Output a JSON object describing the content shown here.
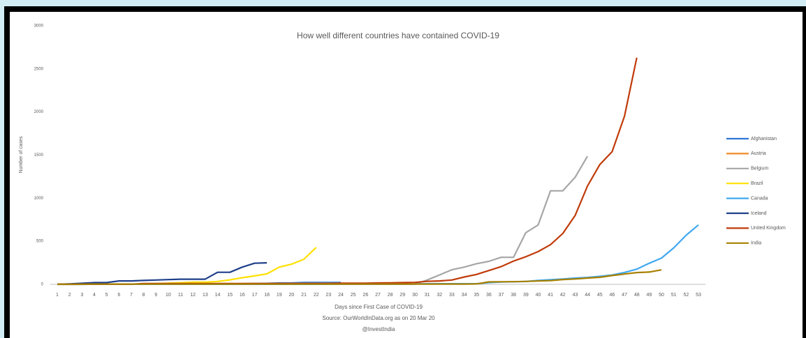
{
  "chart_data": {
    "type": "line",
    "title": "How well different countries have contained COVID-19",
    "ylabel": "Number of cases",
    "xlabel": "Days since First Case of COVID-19",
    "source": "Source: OurWorldInData.org as on 20 Mar 20",
    "credit": "@InvestIndia",
    "categories": [
      "1",
      "2",
      "3",
      "4",
      "5",
      "6",
      "7",
      "8",
      "9",
      "10",
      "11",
      "12",
      "13",
      "14",
      "15",
      "16",
      "17",
      "18",
      "19",
      "20",
      "21",
      "22",
      "23",
      "24",
      "25",
      "26",
      "27",
      "28",
      "29",
      "30",
      "31",
      "32",
      "33",
      "34",
      "35",
      "36",
      "37",
      "38",
      "39",
      "40",
      "41",
      "42",
      "43",
      "44",
      "45",
      "46",
      "47",
      "48",
      "49",
      "50",
      "51",
      "52",
      "53"
    ],
    "ylim": [
      0,
      3000
    ],
    "yticks": [
      0,
      500,
      1000,
      1500,
      2000,
      2500,
      3000
    ],
    "grid": false,
    "legend": "right",
    "series": [
      {
        "name": "Afghanistan",
        "color": "#2e75d6",
        "values": [
          0,
          0,
          0,
          1,
          1,
          1,
          1,
          1,
          1,
          1,
          1,
          1,
          4,
          5,
          7,
          7,
          10,
          11,
          16,
          16,
          21,
          22,
          22,
          22,
          null,
          null,
          null,
          null,
          null,
          null,
          null,
          null,
          null,
          null,
          null,
          null,
          null,
          null,
          null,
          null,
          null,
          null,
          null,
          null,
          null,
          null,
          null,
          null,
          null,
          null,
          null,
          null,
          null
        ]
      },
      {
        "name": "Austria",
        "color": "#f08a24",
        "values": [
          0,
          0,
          1,
          1,
          2,
          2,
          3,
          3,
          4,
          4,
          5,
          5,
          6,
          6,
          7,
          7,
          8,
          8,
          9,
          9,
          10,
          10,
          11,
          12,
          null,
          null,
          null,
          null,
          null,
          null,
          null,
          null,
          null,
          null,
          null,
          null,
          null,
          null,
          null,
          null,
          null,
          null,
          null,
          null,
          null,
          null,
          null,
          null,
          null,
          null,
          null,
          null,
          null
        ]
      },
      {
        "name": "Belgium",
        "color": "#a6a6a6",
        "values": [
          1,
          1,
          1,
          1,
          1,
          1,
          1,
          1,
          1,
          1,
          1,
          1,
          1,
          1,
          1,
          1,
          1,
          1,
          1,
          1,
          1,
          1,
          1,
          1,
          1,
          1,
          1,
          1,
          2,
          2,
          50,
          109,
          169,
          200,
          239,
          267,
          314,
          314,
          599,
          689,
          1085,
          1085,
          1243,
          1486,
          null,
          null,
          null,
          null,
          null,
          null,
          null,
          null,
          null
        ]
      },
      {
        "name": "Brazil",
        "color": "#ffe000",
        "values": [
          1,
          1,
          1,
          1,
          2,
          2,
          2,
          3,
          8,
          13,
          19,
          25,
          25,
          34,
          52,
          77,
          98,
          121,
          200,
          234,
          291,
          428,
          null,
          null,
          null,
          null,
          null,
          null,
          null,
          null,
          null,
          null,
          null,
          null,
          null,
          null,
          null,
          null,
          null,
          null,
          null,
          null,
          null,
          null,
          null,
          null,
          null,
          null,
          null,
          null,
          null,
          null,
          null
        ]
      },
      {
        "name": "Canada",
        "color": "#41a8f0",
        "values": [
          1,
          1,
          1,
          1,
          1,
          1,
          1,
          2,
          2,
          2,
          2,
          2,
          2,
          2,
          2,
          2,
          2,
          2,
          2,
          2,
          2,
          2,
          4,
          4,
          4,
          4,
          4,
          4,
          4,
          4,
          7,
          7,
          7,
          7,
          7,
          20,
          27,
          30,
          33,
          45,
          54,
          62,
          73,
          80,
          93,
          108,
          138,
          176,
          244,
          304,
          424,
          569,
          690
        ]
      },
      {
        "name": "Iceland",
        "color": "#1f3f8a",
        "values": [
          1,
          6,
          12,
          20,
          20,
          40,
          40,
          45,
          50,
          55,
          60,
          60,
          60,
          140,
          140,
          200,
          245,
          250,
          null,
          null,
          null,
          null,
          null,
          null,
          null,
          null,
          null,
          null,
          null,
          null,
          null,
          null,
          null,
          null,
          null,
          null,
          null,
          null,
          null,
          null,
          null,
          null,
          null,
          null,
          null,
          null,
          null,
          null,
          null,
          null,
          null,
          null,
          null
        ]
      },
      {
        "name": "United Kingdom",
        "color": "#c03a08",
        "values": [
          2,
          2,
          2,
          2,
          2,
          2,
          2,
          9,
          9,
          9,
          9,
          9,
          9,
          9,
          9,
          9,
          9,
          9,
          9,
          9,
          9,
          9,
          9,
          13,
          13,
          13,
          16,
          18,
          20,
          23,
          35,
          40,
          50,
          85,
          115,
          160,
          205,
          270,
          320,
          380,
          460,
          590,
          800,
          1140,
          1390,
          1540,
          1950,
          2630,
          null,
          null,
          null,
          null,
          null
        ]
      },
      {
        "name": "India",
        "color": "#a88000",
        "values": [
          1,
          1,
          1,
          3,
          3,
          3,
          3,
          3,
          3,
          3,
          3,
          3,
          3,
          3,
          3,
          3,
          3,
          3,
          3,
          3,
          3,
          3,
          3,
          3,
          3,
          3,
          3,
          3,
          3,
          3,
          3,
          3,
          3,
          3,
          5,
          28,
          30,
          31,
          34,
          39,
          43,
          56,
          62,
          73,
          82,
          102,
          120,
          137,
          142,
          168,
          null,
          null,
          null
        ]
      }
    ]
  }
}
